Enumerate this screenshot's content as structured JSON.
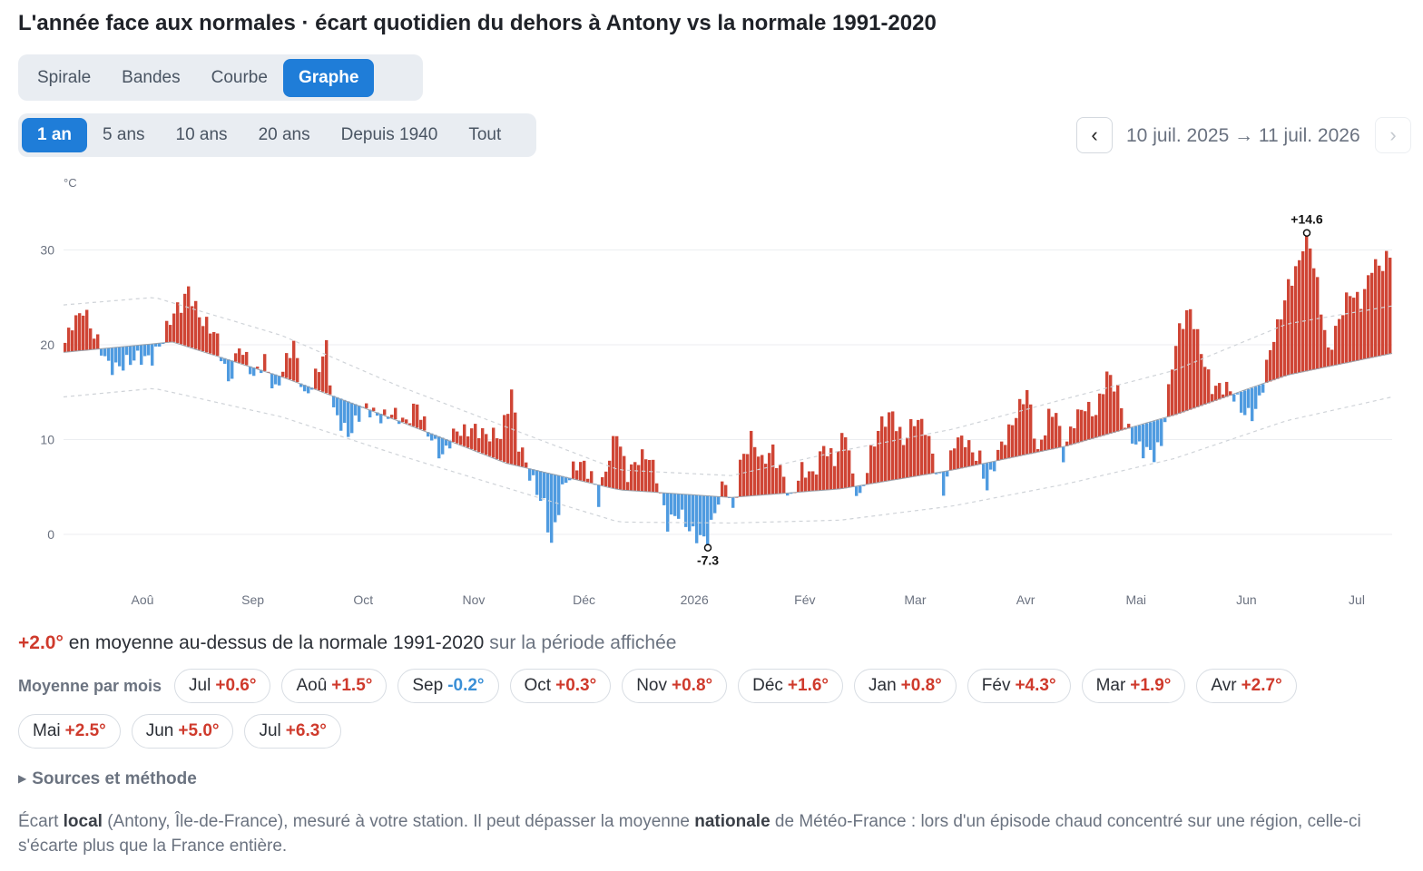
{
  "title": "L'année face aux normales · écart quotidien du dehors à Antony vs la normale 1991-2020",
  "view_tabs": [
    {
      "label": "Spirale",
      "active": false
    },
    {
      "label": "Bandes",
      "active": false
    },
    {
      "label": "Courbe",
      "active": false
    },
    {
      "label": "Graphe",
      "active": true
    }
  ],
  "period_tabs": [
    {
      "label": "1 an",
      "active": true
    },
    {
      "label": "5 ans",
      "active": false
    },
    {
      "label": "10 ans",
      "active": false
    },
    {
      "label": "20 ans",
      "active": false
    },
    {
      "label": "Depuis 1940",
      "active": false
    },
    {
      "label": "Tout",
      "active": false
    }
  ],
  "nav": {
    "prev": "‹",
    "next": "›",
    "range": "10 juil. 2025 → 11 juil. 2026"
  },
  "colors": {
    "warm": "#cf4535",
    "cold": "#4f9be0",
    "accent": "#1f7dd8"
  },
  "chart_data": {
    "type": "bar",
    "ylabel": "°C",
    "ylim": [
      -3,
      35
    ],
    "yticks": [
      0,
      10,
      20,
      30
    ],
    "x_months": [
      "Aoû",
      "Sep",
      "Oct",
      "Nov",
      "Déc",
      "2026",
      "Fév",
      "Mar",
      "Avr",
      "Mai",
      "Jun",
      "Jul"
    ],
    "annotations": [
      {
        "label": "+14.6",
        "kind": "max"
      },
      {
        "label": "-7.3",
        "kind": "min"
      }
    ],
    "normal_anchors": [
      {
        "day": 0,
        "value": 19.2
      },
      {
        "day": 30,
        "value": 20.3
      },
      {
        "day": 61,
        "value": 16.5
      },
      {
        "day": 92,
        "value": 12.0
      },
      {
        "day": 122,
        "value": 7.5
      },
      {
        "day": 153,
        "value": 4.7
      },
      {
        "day": 184,
        "value": 3.9
      },
      {
        "day": 214,
        "value": 4.8
      },
      {
        "day": 245,
        "value": 6.8
      },
      {
        "day": 276,
        "value": 9.3
      },
      {
        "day": 306,
        "value": 12.6
      },
      {
        "day": 337,
        "value": 16.8
      },
      {
        "day": 366,
        "value": 19.1
      }
    ],
    "band_anchors": [
      {
        "day": 0,
        "upper": 24.2,
        "lower": 14.5
      },
      {
        "day": 25,
        "upper": 25.0,
        "lower": 15.4
      },
      {
        "day": 60,
        "upper": 21.0,
        "lower": 12.4
      },
      {
        "day": 92,
        "upper": 15.7,
        "lower": 8.4
      },
      {
        "day": 153,
        "upper": 6.8,
        "lower": 1.3
      },
      {
        "day": 184,
        "upper": 6.2,
        "lower": 1.2
      },
      {
        "day": 214,
        "upper": 8.8,
        "lower": 1.5
      },
      {
        "day": 245,
        "upper": 11.1,
        "lower": 3.0
      },
      {
        "day": 276,
        "upper": 14.3,
        "lower": 5.3
      },
      {
        "day": 306,
        "upper": 17.3,
        "lower": 8.0
      },
      {
        "day": 337,
        "upper": 22.2,
        "lower": 12.0
      },
      {
        "day": 366,
        "upper": 24.1,
        "lower": 14.5
      }
    ],
    "deviation_anchors": [
      {
        "day": 0,
        "value": 1
      },
      {
        "day": 2,
        "value": 3.5
      },
      {
        "day": 5,
        "value": 4.5
      },
      {
        "day": 8,
        "value": 1
      },
      {
        "day": 12,
        "value": -1.5
      },
      {
        "day": 18,
        "value": -2
      },
      {
        "day": 24,
        "value": -1
      },
      {
        "day": 27,
        "value": 0.5
      },
      {
        "day": 32,
        "value": 4
      },
      {
        "day": 34,
        "value": 6.5
      },
      {
        "day": 38,
        "value": 3
      },
      {
        "day": 42,
        "value": 1.5
      },
      {
        "day": 45,
        "value": -2
      },
      {
        "day": 47,
        "value": 0.5
      },
      {
        "day": 48,
        "value": 2
      },
      {
        "day": 52,
        "value": -1.5
      },
      {
        "day": 55,
        "value": 1.5
      },
      {
        "day": 58,
        "value": -1.5
      },
      {
        "day": 63,
        "value": 3.5
      },
      {
        "day": 66,
        "value": -1
      },
      {
        "day": 70,
        "value": 2.5
      },
      {
        "day": 72,
        "value": 4.5
      },
      {
        "day": 74,
        "value": -2
      },
      {
        "day": 78,
        "value": -3
      },
      {
        "day": 82,
        "value": -0.5
      },
      {
        "day": 86,
        "value": -0.5
      },
      {
        "day": 90,
        "value": 1
      },
      {
        "day": 94,
        "value": -0.5
      },
      {
        "day": 97,
        "value": 2.5
      },
      {
        "day": 100,
        "value": 0.5
      },
      {
        "day": 104,
        "value": -2.5
      },
      {
        "day": 108,
        "value": 1.5
      },
      {
        "day": 112,
        "value": 2.5
      },
      {
        "day": 116,
        "value": 1.5
      },
      {
        "day": 120,
        "value": 3
      },
      {
        "day": 123,
        "value": 8
      },
      {
        "day": 125,
        "value": 2
      },
      {
        "day": 128,
        "value": -1
      },
      {
        "day": 132,
        "value": -3
      },
      {
        "day": 134,
        "value": -7.3
      },
      {
        "day": 137,
        "value": -2
      },
      {
        "day": 140,
        "value": 1
      },
      {
        "day": 142,
        "value": 2.5
      },
      {
        "day": 145,
        "value": 1
      },
      {
        "day": 147,
        "value": -2
      },
      {
        "day": 150,
        "value": 3
      },
      {
        "day": 152,
        "value": 6.5
      },
      {
        "day": 155,
        "value": 2
      },
      {
        "day": 158,
        "value": 3
      },
      {
        "day": 161,
        "value": 3.5
      },
      {
        "day": 163,
        "value": 2
      },
      {
        "day": 166,
        "value": -3
      },
      {
        "day": 169,
        "value": -2.5
      },
      {
        "day": 172,
        "value": -3.8
      },
      {
        "day": 175,
        "value": -4
      },
      {
        "day": 177,
        "value": -4.5
      },
      {
        "day": 179,
        "value": -2
      },
      {
        "day": 182,
        "value": 1.5
      },
      {
        "day": 184,
        "value": -1.5
      },
      {
        "day": 186,
        "value": 4
      },
      {
        "day": 189,
        "value": 6
      },
      {
        "day": 192,
        "value": 3
      },
      {
        "day": 195,
        "value": 5
      },
      {
        "day": 198,
        "value": 2
      },
      {
        "day": 200,
        "value": -1
      },
      {
        "day": 203,
        "value": 2
      },
      {
        "day": 206,
        "value": 2
      },
      {
        "day": 209,
        "value": 5
      },
      {
        "day": 212,
        "value": 2.5
      },
      {
        "day": 215,
        "value": 6
      },
      {
        "day": 217,
        "value": 1.5
      },
      {
        "day": 219,
        "value": -1
      },
      {
        "day": 222,
        "value": 3
      },
      {
        "day": 225,
        "value": 6
      },
      {
        "day": 228,
        "value": 7.5
      },
      {
        "day": 231,
        "value": 4
      },
      {
        "day": 234,
        "value": 5.5
      },
      {
        "day": 237,
        "value": 5
      },
      {
        "day": 239,
        "value": 2.5
      },
      {
        "day": 242,
        "value": -2
      },
      {
        "day": 245,
        "value": 2.5
      },
      {
        "day": 248,
        "value": 3
      },
      {
        "day": 252,
        "value": 1
      },
      {
        "day": 254,
        "value": -3
      },
      {
        "day": 258,
        "value": 1.5
      },
      {
        "day": 262,
        "value": 5
      },
      {
        "day": 265,
        "value": 6.5
      },
      {
        "day": 268,
        "value": -0.5
      },
      {
        "day": 271,
        "value": 4
      },
      {
        "day": 273,
        "value": 4.5
      },
      {
        "day": 275,
        "value": -1
      },
      {
        "day": 278,
        "value": 2
      },
      {
        "day": 281,
        "value": 4
      },
      {
        "day": 284,
        "value": 3
      },
      {
        "day": 287,
        "value": 6
      },
      {
        "day": 290,
        "value": 4
      },
      {
        "day": 292,
        "value": 1
      },
      {
        "day": 295,
        "value": -1.5
      },
      {
        "day": 297,
        "value": -3
      },
      {
        "day": 300,
        "value": -4
      },
      {
        "day": 302,
        "value": -2.5
      },
      {
        "day": 305,
        "value": 6
      },
      {
        "day": 307,
        "value": 9
      },
      {
        "day": 310,
        "value": 10
      },
      {
        "day": 313,
        "value": 6
      },
      {
        "day": 316,
        "value": 2
      },
      {
        "day": 320,
        "value": 0.5
      },
      {
        "day": 323,
        "value": -1
      },
      {
        "day": 325,
        "value": -2
      },
      {
        "day": 328,
        "value": -2.5
      },
      {
        "day": 330,
        "value": -0.5
      },
      {
        "day": 332,
        "value": 3
      },
      {
        "day": 334,
        "value": 5.5
      },
      {
        "day": 337,
        "value": 10
      },
      {
        "day": 340,
        "value": 11.5
      },
      {
        "day": 342,
        "value": 14.6
      },
      {
        "day": 345,
        "value": 9
      },
      {
        "day": 348,
        "value": 2
      },
      {
        "day": 351,
        "value": 4.5
      },
      {
        "day": 354,
        "value": 7
      },
      {
        "day": 357,
        "value": 6.5
      },
      {
        "day": 360,
        "value": 10
      },
      {
        "day": 363,
        "value": 9
      },
      {
        "day": 366,
        "value": 11
      }
    ]
  },
  "summary": {
    "value": "+2.0°",
    "text": "en moyenne au-dessus de la normale 1991-2020",
    "muted": "sur la période affichée"
  },
  "monthly": {
    "label": "Moyenne par mois",
    "items": [
      {
        "m": "Jul",
        "v": "+0.6°",
        "sign": "pos"
      },
      {
        "m": "Aoû",
        "v": "+1.5°",
        "sign": "pos"
      },
      {
        "m": "Sep",
        "v": "-0.2°",
        "sign": "neg"
      },
      {
        "m": "Oct",
        "v": "+0.3°",
        "sign": "pos"
      },
      {
        "m": "Nov",
        "v": "+0.8°",
        "sign": "pos"
      },
      {
        "m": "Déc",
        "v": "+1.6°",
        "sign": "pos"
      },
      {
        "m": "Jan",
        "v": "+0.8°",
        "sign": "pos"
      },
      {
        "m": "Fév",
        "v": "+4.3°",
        "sign": "pos"
      },
      {
        "m": "Mar",
        "v": "+1.9°",
        "sign": "pos"
      },
      {
        "m": "Avr",
        "v": "+2.7°",
        "sign": "pos"
      },
      {
        "m": "Mai",
        "v": "+2.5°",
        "sign": "pos"
      },
      {
        "m": "Jun",
        "v": "+5.0°",
        "sign": "pos"
      },
      {
        "m": "Jul",
        "v": "+6.3°",
        "sign": "pos"
      }
    ]
  },
  "sources_label": "Sources et méthode",
  "note": {
    "p1": "Écart ",
    "b1": "local",
    "p2": " (Antony, Île-de-France), mesuré à votre station. Il peut dépasser la moyenne ",
    "b2": "nationale",
    "p3": " de Météo-France : lors d'un épisode chaud concentré sur une région, celle-ci s'écarte plus que la France entière."
  }
}
